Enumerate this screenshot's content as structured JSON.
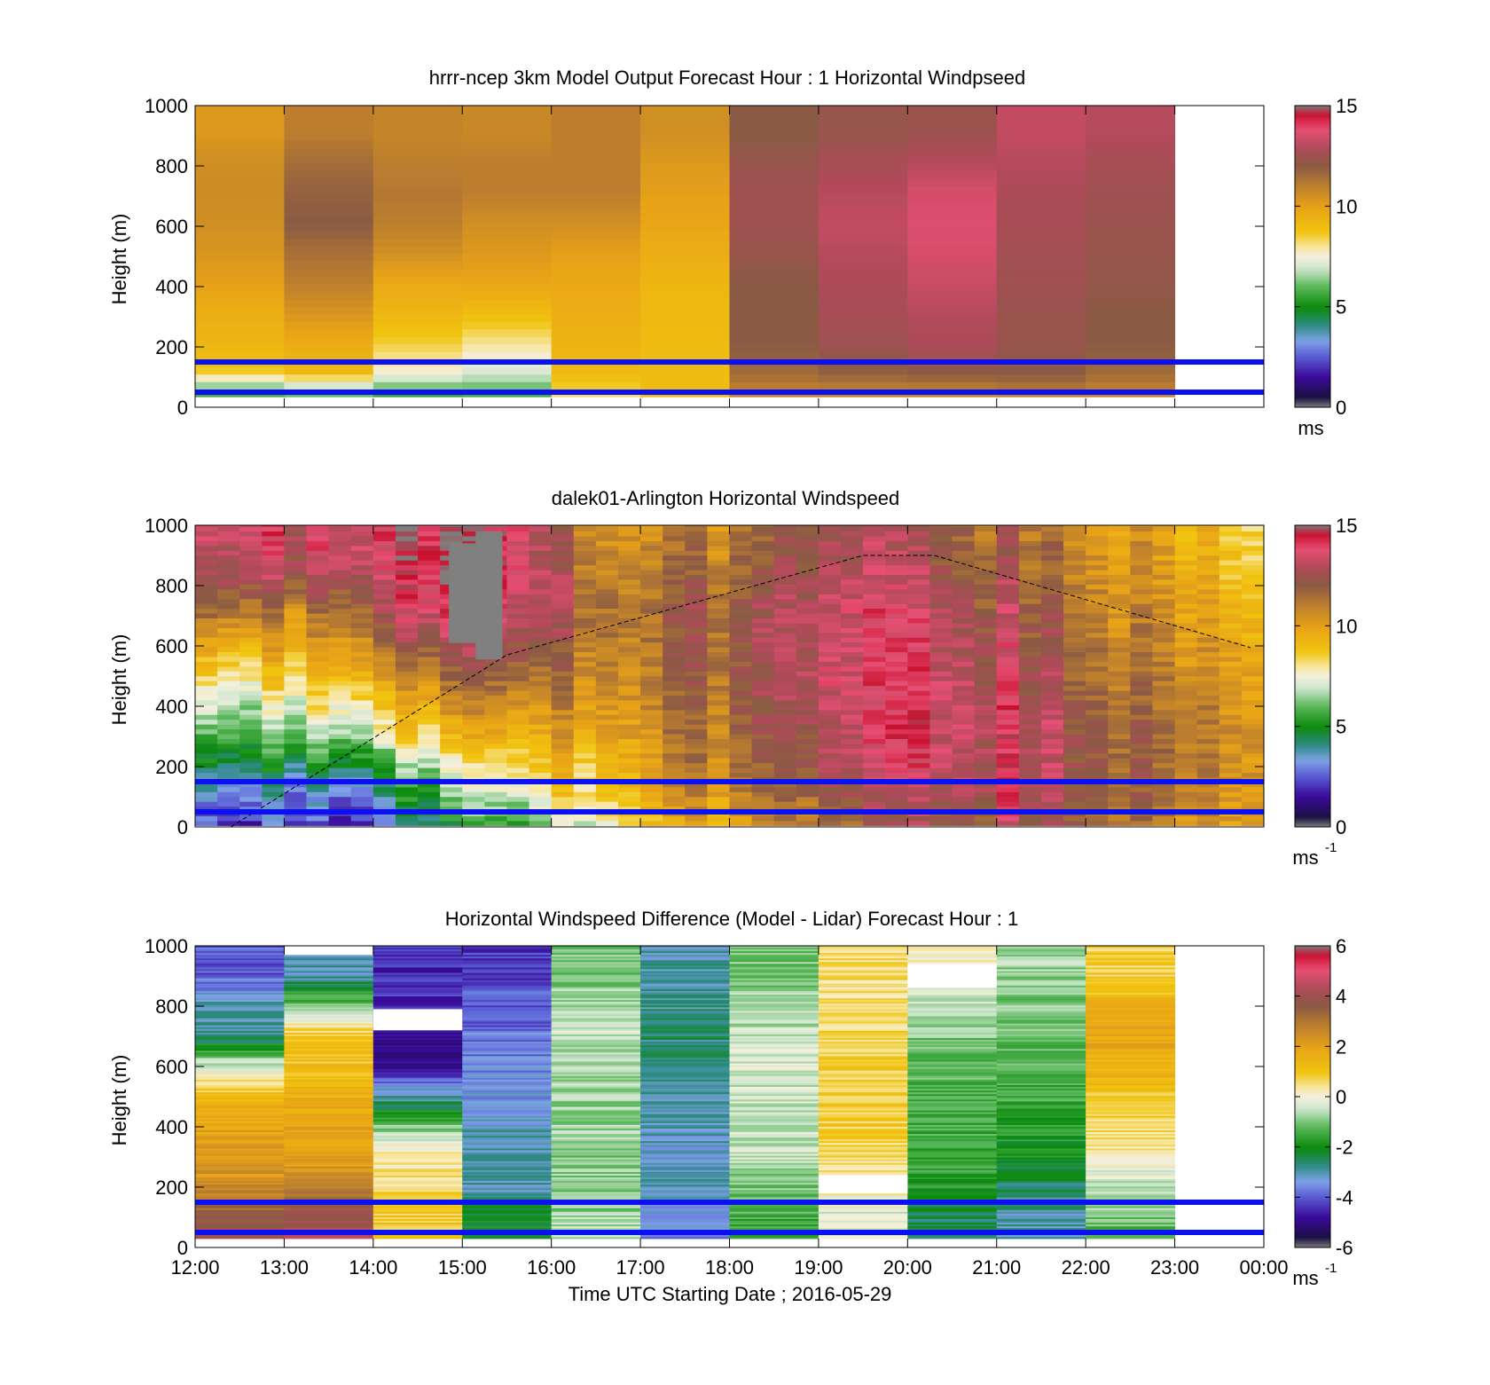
{
  "figure": {
    "xlabel": "Time UTC  Starting Date ; 2016-05-29",
    "x_tick_labels": [
      "12:00",
      "13:00",
      "14:00",
      "15:00",
      "16:00",
      "17:00",
      "18:00",
      "19:00",
      "20:00",
      "21:00",
      "22:00",
      "23:00",
      "00:00"
    ]
  },
  "chart_data": [
    {
      "type": "heatmap",
      "title": "hrrr-ncep 3km Model Output   Forecast Hour : 1 Horizontal Windpseed",
      "ylabel": "Height (m)",
      "y_tick_labels": [
        "0",
        "200",
        "400",
        "600",
        "800",
        "1000"
      ],
      "ylim": [
        0,
        1000
      ],
      "x_hours_utc": [
        12,
        24
      ],
      "data_end_hour": 23,
      "colorbar": {
        "ticks": [
          "0",
          "5",
          "10",
          "15"
        ],
        "range": [
          0,
          15
        ],
        "unit": "ms"
      },
      "reference_lines_m": [
        150,
        50
      ],
      "rows_m": [
        0,
        50,
        100,
        150,
        200,
        300,
        400,
        500,
        600,
        700,
        800,
        900
      ],
      "columns": [
        {
          "hour": 12,
          "values": [
            5,
            6,
            8.5,
            9,
            9.2,
            9.5,
            10,
            10.3,
            10.5,
            10.6,
            10.5,
            10.2
          ]
        },
        {
          "hour": 13,
          "values": [
            5,
            6.5,
            9,
            9.3,
            9.6,
            10.3,
            11,
            11.4,
            12,
            11.8,
            11.5,
            11
          ]
        },
        {
          "hour": 14,
          "values": [
            4.5,
            6,
            7.5,
            8,
            8.5,
            9.2,
            9.7,
            10.5,
            11,
            11.2,
            11,
            10.8
          ]
        },
        {
          "hour": 15,
          "values": [
            5,
            6,
            7,
            7.5,
            8,
            9,
            9.8,
            10.2,
            10.5,
            11,
            11,
            10.7
          ]
        },
        {
          "hour": 16,
          "values": [
            7.5,
            8.5,
            9,
            9.2,
            9.3,
            9.5,
            9.7,
            10,
            10.5,
            11,
            11,
            11
          ]
        },
        {
          "hour": 17,
          "values": [
            9,
            9,
            9,
            9,
            9,
            9.1,
            9.2,
            9.5,
            9.8,
            10,
            10.2,
            10.5
          ]
        },
        {
          "hour": 18,
          "values": [
            10,
            11,
            11.5,
            11.8,
            12,
            12,
            12,
            12.3,
            12.5,
            12.5,
            12.3,
            12
          ]
        },
        {
          "hour": 19,
          "values": [
            10,
            11,
            11.8,
            12.2,
            12.5,
            12.7,
            12.8,
            13,
            13.2,
            13,
            12.7,
            12.3
          ]
        },
        {
          "hour": 20,
          "values": [
            10,
            11,
            12,
            12.5,
            12.8,
            13,
            13.3,
            13.5,
            13.6,
            13.5,
            13,
            12.4
          ]
        },
        {
          "hour": 21,
          "values": [
            10,
            11.2,
            12,
            12.2,
            12.3,
            12.4,
            12.5,
            12.6,
            12.7,
            12.8,
            13,
            13.2
          ]
        },
        {
          "hour": 22,
          "values": [
            10,
            11,
            11.5,
            11.8,
            12,
            12,
            12.2,
            12.3,
            12.4,
            12.5,
            12.7,
            13
          ]
        }
      ]
    },
    {
      "type": "heatmap",
      "title": "dalek01-Arlington  Horizontal Windspeed",
      "ylabel": "Height (m)",
      "y_tick_labels": [
        "0",
        "200",
        "400",
        "600",
        "800",
        "1000"
      ],
      "ylim": [
        0,
        1000
      ],
      "x_hours_utc": [
        12,
        24
      ],
      "data_end_hour": 23.8,
      "colorbar": {
        "ticks": [
          "0",
          "5",
          "10",
          "15"
        ],
        "range": [
          0,
          15
        ],
        "unit": "ms",
        "unit_exponent": "-1"
      },
      "reference_lines_m": [
        150,
        50
      ],
      "overlay_curve": {
        "style": "dashed",
        "description_points": [
          [
            12.4,
            0
          ],
          [
            15.5,
            570
          ],
          [
            19.5,
            900
          ],
          [
            20.3,
            900
          ],
          [
            23.9,
            590
          ]
        ]
      },
      "profile_anchors": [
        {
          "hour": 12,
          "values": [
            3,
            4.5,
            6.5,
            9,
            12,
            13.5,
            14
          ]
        },
        {
          "hour": 12.5,
          "values": [
            2.5,
            4,
            6,
            8.5,
            11.5,
            13.5,
            14
          ]
        },
        {
          "hour": 13,
          "values": [
            2,
            3.5,
            6,
            8.5,
            10.5,
            12.5,
            13
          ]
        },
        {
          "hour": 13.5,
          "values": [
            2,
            4,
            7,
            9.5,
            11.5,
            13.5,
            14
          ]
        },
        {
          "hour": 14,
          "values": [
            3,
            5,
            8,
            10.5,
            13,
            14,
            14.5
          ]
        },
        {
          "hour": 14.5,
          "values": [
            4,
            6,
            8.5,
            11,
            13.5,
            14.5,
            14.5
          ]
        },
        {
          "hour": 15,
          "values": [
            5,
            7,
            9,
            11.5,
            13.5,
            14.5,
            14.5
          ]
        },
        {
          "hour": 15.5,
          "values": [
            6,
            8,
            9.5,
            12,
            13.5,
            14,
            14
          ]
        },
        {
          "hour": 16,
          "values": [
            7,
            8.5,
            9.5,
            11,
            12,
            12,
            11.5
          ]
        },
        {
          "hour": 16.5,
          "values": [
            8,
            9,
            10,
            11,
            11.5,
            11,
            10.5
          ]
        },
        {
          "hour": 17,
          "values": [
            9,
            10,
            10.5,
            11,
            11.5,
            11,
            10.5
          ]
        },
        {
          "hour": 18,
          "values": [
            10,
            11,
            11.5,
            12,
            12,
            11.5,
            11
          ]
        },
        {
          "hour": 19,
          "values": [
            11,
            12,
            12.5,
            13,
            13,
            12.5,
            12
          ]
        },
        {
          "hour": 19.5,
          "values": [
            12,
            13,
            13.5,
            13.5,
            13.5,
            13,
            12.5
          ]
        },
        {
          "hour": 20,
          "values": [
            12.5,
            13.5,
            14,
            14,
            13.5,
            13,
            12.5
          ]
        },
        {
          "hour": 21,
          "values": [
            12.5,
            13.5,
            13.5,
            13,
            12.5,
            12,
            11.5
          ]
        },
        {
          "hour": 22,
          "values": [
            11.5,
            12,
            12,
            11.5,
            11,
            10.5,
            10.5
          ]
        },
        {
          "hour": 23,
          "values": [
            10.5,
            11,
            11,
            10.5,
            10,
            9.5,
            9.5
          ]
        },
        {
          "hour": 23.8,
          "values": [
            10.5,
            11,
            11,
            10.5,
            10,
            9,
            9
          ]
        }
      ],
      "profile_heights_m": [
        0,
        150,
        300,
        500,
        700,
        850,
        1000
      ],
      "missing_data_regions": [
        {
          "hours": [
            14.85,
            15.45
          ],
          "heights_m": [
            610,
            940
          ]
        },
        {
          "hours": [
            15.15,
            15.45
          ],
          "heights_m": [
            555,
            980
          ]
        }
      ]
    },
    {
      "type": "heatmap",
      "title": "Horizontal Windspeed Difference (Model - Lidar) Forecast Hour : 1",
      "ylabel": "Height (m)",
      "y_tick_labels": [
        "0",
        "200",
        "400",
        "600",
        "800",
        "1000"
      ],
      "ylim": [
        0,
        1000
      ],
      "x_hours_utc": [
        12,
        24
      ],
      "data_end_hour": 23,
      "colorbar": {
        "ticks": [
          "-6",
          "-4",
          "-2",
          "0",
          "2",
          "4",
          "6"
        ],
        "range": [
          -6,
          6
        ],
        "unit": "ms",
        "unit_exponent": "-1"
      },
      "reference_lines_m": [
        150,
        50
      ],
      "rows_m": [
        30,
        100,
        200,
        300,
        400,
        500,
        600,
        700,
        800,
        900
      ],
      "columns": [
        {
          "hour": 12,
          "values": [
            4,
            3.5,
            2.5,
            2,
            1.8,
            1.2,
            -0.3,
            -2.8,
            -3,
            -4
          ]
        },
        {
          "hour": 13,
          "values": [
            4.2,
            4,
            2.5,
            2,
            2,
            1.5,
            1,
            1,
            -1,
            -3
          ]
        },
        {
          "hour": 14,
          "values": [
            1,
            1,
            0.5,
            0.3,
            -1,
            -3,
            -5,
            -5,
            -4.5,
            -4.5
          ]
        },
        {
          "hour": 15,
          "values": [
            -2,
            -2,
            -3,
            -3,
            -3.2,
            -3.5,
            -3.6,
            -3.8,
            -4,
            -4.3
          ]
        },
        {
          "hour": 16,
          "values": [
            -0.5,
            -0.8,
            -1,
            -1,
            -0.8,
            -0.8,
            -0.6,
            -0.5,
            -0.7,
            -1
          ]
        },
        {
          "hour": 17,
          "values": [
            -3.8,
            -3.5,
            -3,
            -3.2,
            -3,
            -2.8,
            -2.8,
            -2.6,
            -2.8,
            -3
          ]
        },
        {
          "hour": 18,
          "values": [
            -1.5,
            -1.5,
            -1,
            -0.5,
            -0.5,
            -0.5,
            -0.3,
            -0.5,
            -0.8,
            -1
          ]
        },
        {
          "hour": 19,
          "values": [
            -0.3,
            -0.3,
            0.2,
            0.5,
            0.8,
            0.8,
            0.8,
            0.6,
            0.5,
            0.5
          ]
        },
        {
          "hour": 20,
          "values": [
            -2.5,
            -2.5,
            -1.8,
            -1.5,
            -1.5,
            -1.3,
            -1.2,
            -1,
            -0.6,
            0.1
          ]
        },
        {
          "hour": 21,
          "values": [
            -3,
            -3,
            -2.5,
            -2,
            -1.8,
            -1.5,
            -1.3,
            -1.2,
            -1,
            -0.8
          ]
        },
        {
          "hour": 22,
          "values": [
            -1.5,
            -1,
            -0.5,
            0.2,
            0.6,
            1,
            1.5,
            1.8,
            1.5,
            0.8
          ]
        }
      ],
      "missing_data_regions": [
        {
          "hours": [
            13,
            14
          ],
          "heights_m": [
            970,
            1000
          ]
        },
        {
          "hours": [
            14,
            15
          ],
          "heights_m": [
            720,
            790
          ]
        },
        {
          "hours": [
            20,
            21
          ],
          "heights_m": [
            860,
            940
          ]
        },
        {
          "hours": [
            19,
            20
          ],
          "heights_m": [
            180,
            240
          ]
        }
      ]
    }
  ]
}
